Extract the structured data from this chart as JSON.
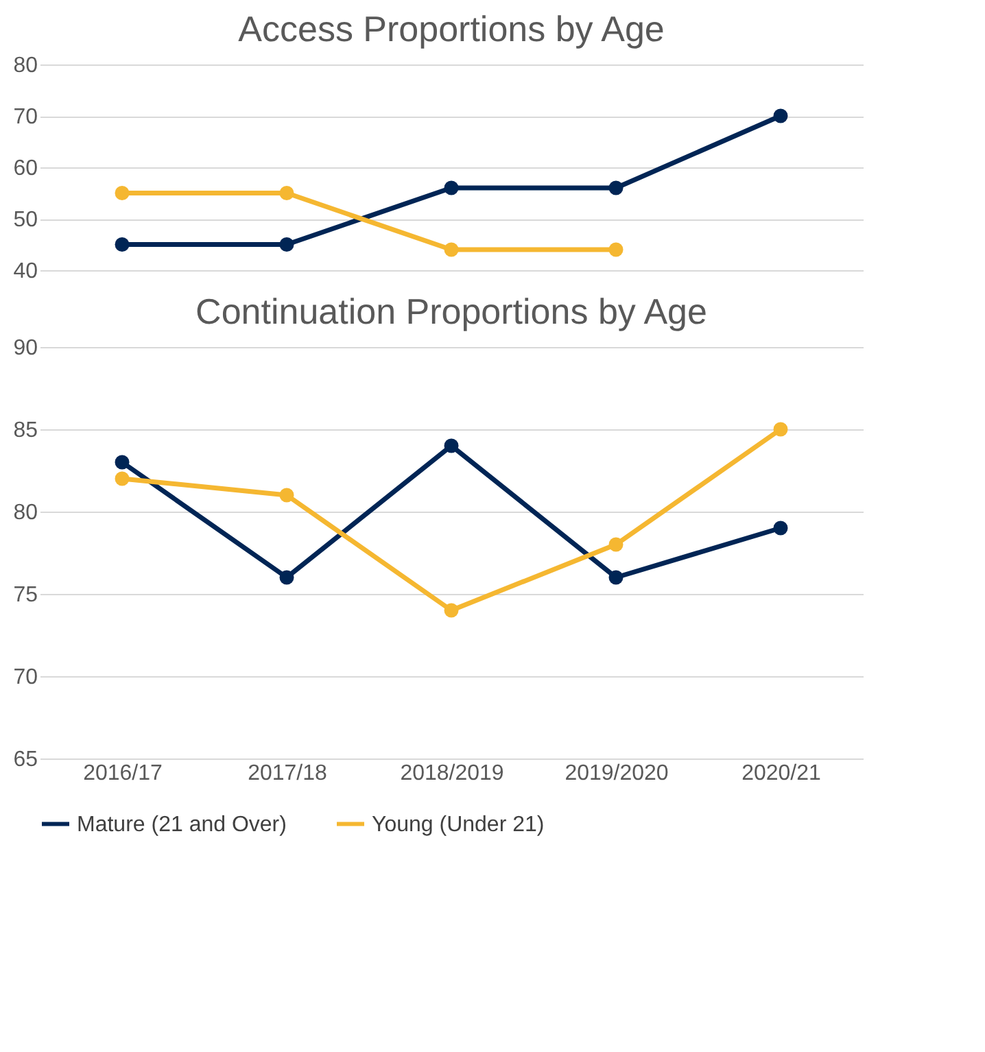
{
  "chart_data": [
    {
      "type": "line",
      "title": "Access Proportions by Age",
      "categories": [
        null,
        null,
        null,
        null,
        null
      ],
      "series": [
        {
          "color": "#002555",
          "values": [
            45,
            45,
            56,
            56,
            70
          ]
        },
        {
          "color": "#f5b731",
          "values": [
            55,
            55,
            44,
            44,
            null
          ]
        }
      ],
      "ylim": [
        40,
        80
      ],
      "yticks": [
        40,
        50,
        60,
        70,
        80
      ],
      "grid": "y",
      "marker": "circle",
      "tick_labels": "y",
      "legend": false
    },
    {
      "type": "line",
      "title": "Continuation Proportions by Age",
      "categories": [
        "2016/17",
        "2017/18",
        "2018/2019",
        "2019/2020",
        "2020/21"
      ],
      "series": [
        {
          "name": "Mature (21 and Over)",
          "color": "#002555",
          "values": [
            83,
            76,
            84,
            76,
            79
          ]
        },
        {
          "name": "Young (Under 21)",
          "color": "#f5b731",
          "values": [
            82,
            81,
            74,
            78,
            85
          ]
        }
      ],
      "ylim": [
        65,
        90
      ],
      "yticks": [
        65,
        70,
        75,
        80,
        85,
        90
      ],
      "grid": "y",
      "marker": "circle",
      "legend": "bottom"
    }
  ]
}
